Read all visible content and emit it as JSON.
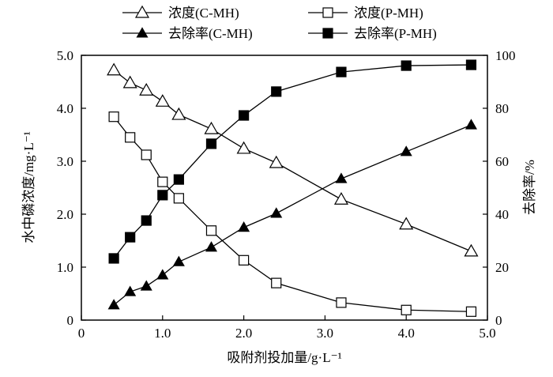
{
  "chart_data": {
    "type": "line",
    "title": "",
    "xlabel": "吸附剂投加量/g·L⁻¹",
    "ylabel_left": "水中磷浓度/mg·L⁻¹",
    "ylabel_right": "去除率/%",
    "xlim": [
      0,
      5.0
    ],
    "ylim_left": [
      0,
      5.0
    ],
    "ylim_right": [
      0,
      100
    ],
    "x_ticks": [
      "0",
      "1.0",
      "2.0",
      "3.0",
      "4.0",
      "5.0"
    ],
    "y_left_ticks": [
      "0",
      "1.0",
      "2.0",
      "3.0",
      "4.0",
      "5.0"
    ],
    "y_right_ticks": [
      "0",
      "20",
      "40",
      "60",
      "80",
      "100"
    ],
    "grid": false,
    "legend_placement": "top",
    "x": [
      0.4,
      0.6,
      0.8,
      1.0,
      1.2,
      1.6,
      2.0,
      2.4,
      3.2,
      4.0,
      4.8
    ],
    "series": [
      {
        "name": "浓度(C-MH)",
        "axis": "left",
        "marker": "open-triangle",
        "values": [
          4.72,
          4.48,
          4.34,
          4.13,
          3.88,
          3.61,
          3.24,
          2.97,
          2.28,
          1.81,
          1.3
        ]
      },
      {
        "name": "浓度(P-MH)",
        "axis": "left",
        "marker": "open-square",
        "values": [
          3.84,
          3.45,
          3.12,
          2.61,
          2.3,
          1.69,
          1.13,
          0.7,
          0.33,
          0.19,
          0.16
        ]
      },
      {
        "name": "去除率(C-MH)",
        "axis": "right",
        "marker": "filled-triangle",
        "values": [
          5.7,
          10.7,
          12.8,
          17.0,
          22.0,
          27.5,
          35.0,
          40.3,
          53.4,
          63.6,
          73.7
        ]
      },
      {
        "name": "去除率(P-MH)",
        "axis": "right",
        "marker": "filled-square",
        "values": [
          23.3,
          31.3,
          37.6,
          47.2,
          53.1,
          66.6,
          77.3,
          86.3,
          93.7,
          96.1,
          96.4
        ]
      }
    ]
  }
}
